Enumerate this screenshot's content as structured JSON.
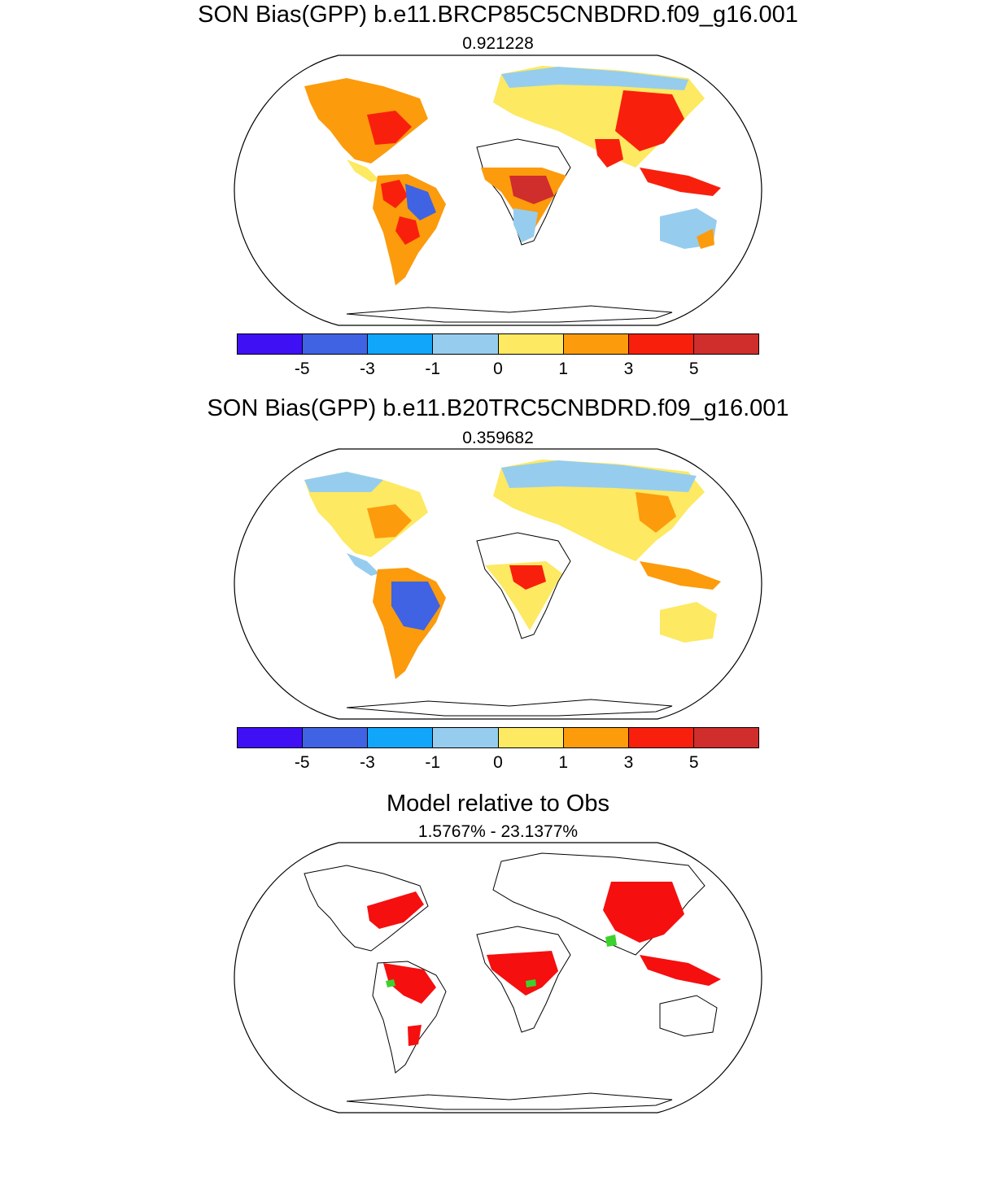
{
  "panels": [
    {
      "title": "SON Bias(GPP) b.e11.BRCP85C5CNBDRD.f09_g16.001",
      "subtitle": "0.921228"
    },
    {
      "title": "SON Bias(GPP) b.e11.B20TRC5CNBDRD.f09_g16.001",
      "subtitle": "0.359682"
    },
    {
      "title": "Model relative to Obs",
      "subtitle": "1.5767% - 23.1377%"
    }
  ],
  "colorbar": {
    "colors": [
      "#4010f5",
      "#3f63e3",
      "#11a6fa",
      "#96cdee",
      "#fde962",
      "#fc9b0c",
      "#f8200c",
      "#d02d2d"
    ],
    "labels": [
      "-5",
      "-3",
      "-1",
      "0",
      "1",
      "3",
      "5"
    ]
  },
  "map_colors": {
    "land_outline": "#000000",
    "relative_high": "#f50f0f",
    "relative_low": "#3cd22e"
  }
}
